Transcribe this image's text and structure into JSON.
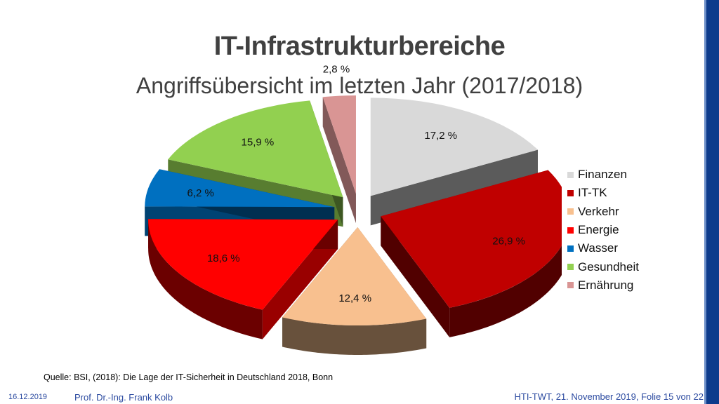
{
  "slide": {
    "title": "IT-Infrastrukturbereiche",
    "subtitle": "Angriffsübersicht im letzten Jahr (2017/2018)",
    "source": "Quelle: BSI, (2018): Die Lage der IT-Sicherheit in Deutschland 2018, Bonn",
    "footer": {
      "date": "16.12.2019",
      "author": "Prof. Dr.-Ing. Frank Kolb",
      "slide_info": "HTI-TWT, 21. November 2019, Folie 15 von 22"
    }
  },
  "chart_data": {
    "type": "pie",
    "exploded": true,
    "three_d": true,
    "legend_position": "right",
    "slices": [
      {
        "name": "Finanzen",
        "value": 17.2,
        "label": "17,2 %",
        "color": "#d9d9d9"
      },
      {
        "name": "IT-TK",
        "value": 26.9,
        "label": "26,9 %",
        "color": "#c00000"
      },
      {
        "name": "Verkehr",
        "value": 12.4,
        "label": "12,4 %",
        "color": "#f8c08f"
      },
      {
        "name": "Energie",
        "value": 18.6,
        "label": "18,6 %",
        "color": "#ff0000"
      },
      {
        "name": "Wasser",
        "value": 6.2,
        "label": "6,2 %",
        "color": "#0070c0"
      },
      {
        "name": "Gesundheit",
        "value": 15.9,
        "label": "15,9 %",
        "color": "#92d050"
      },
      {
        "name": "Ernährung",
        "value": 2.8,
        "label": "2,8 %",
        "color": "#d99594"
      }
    ]
  }
}
